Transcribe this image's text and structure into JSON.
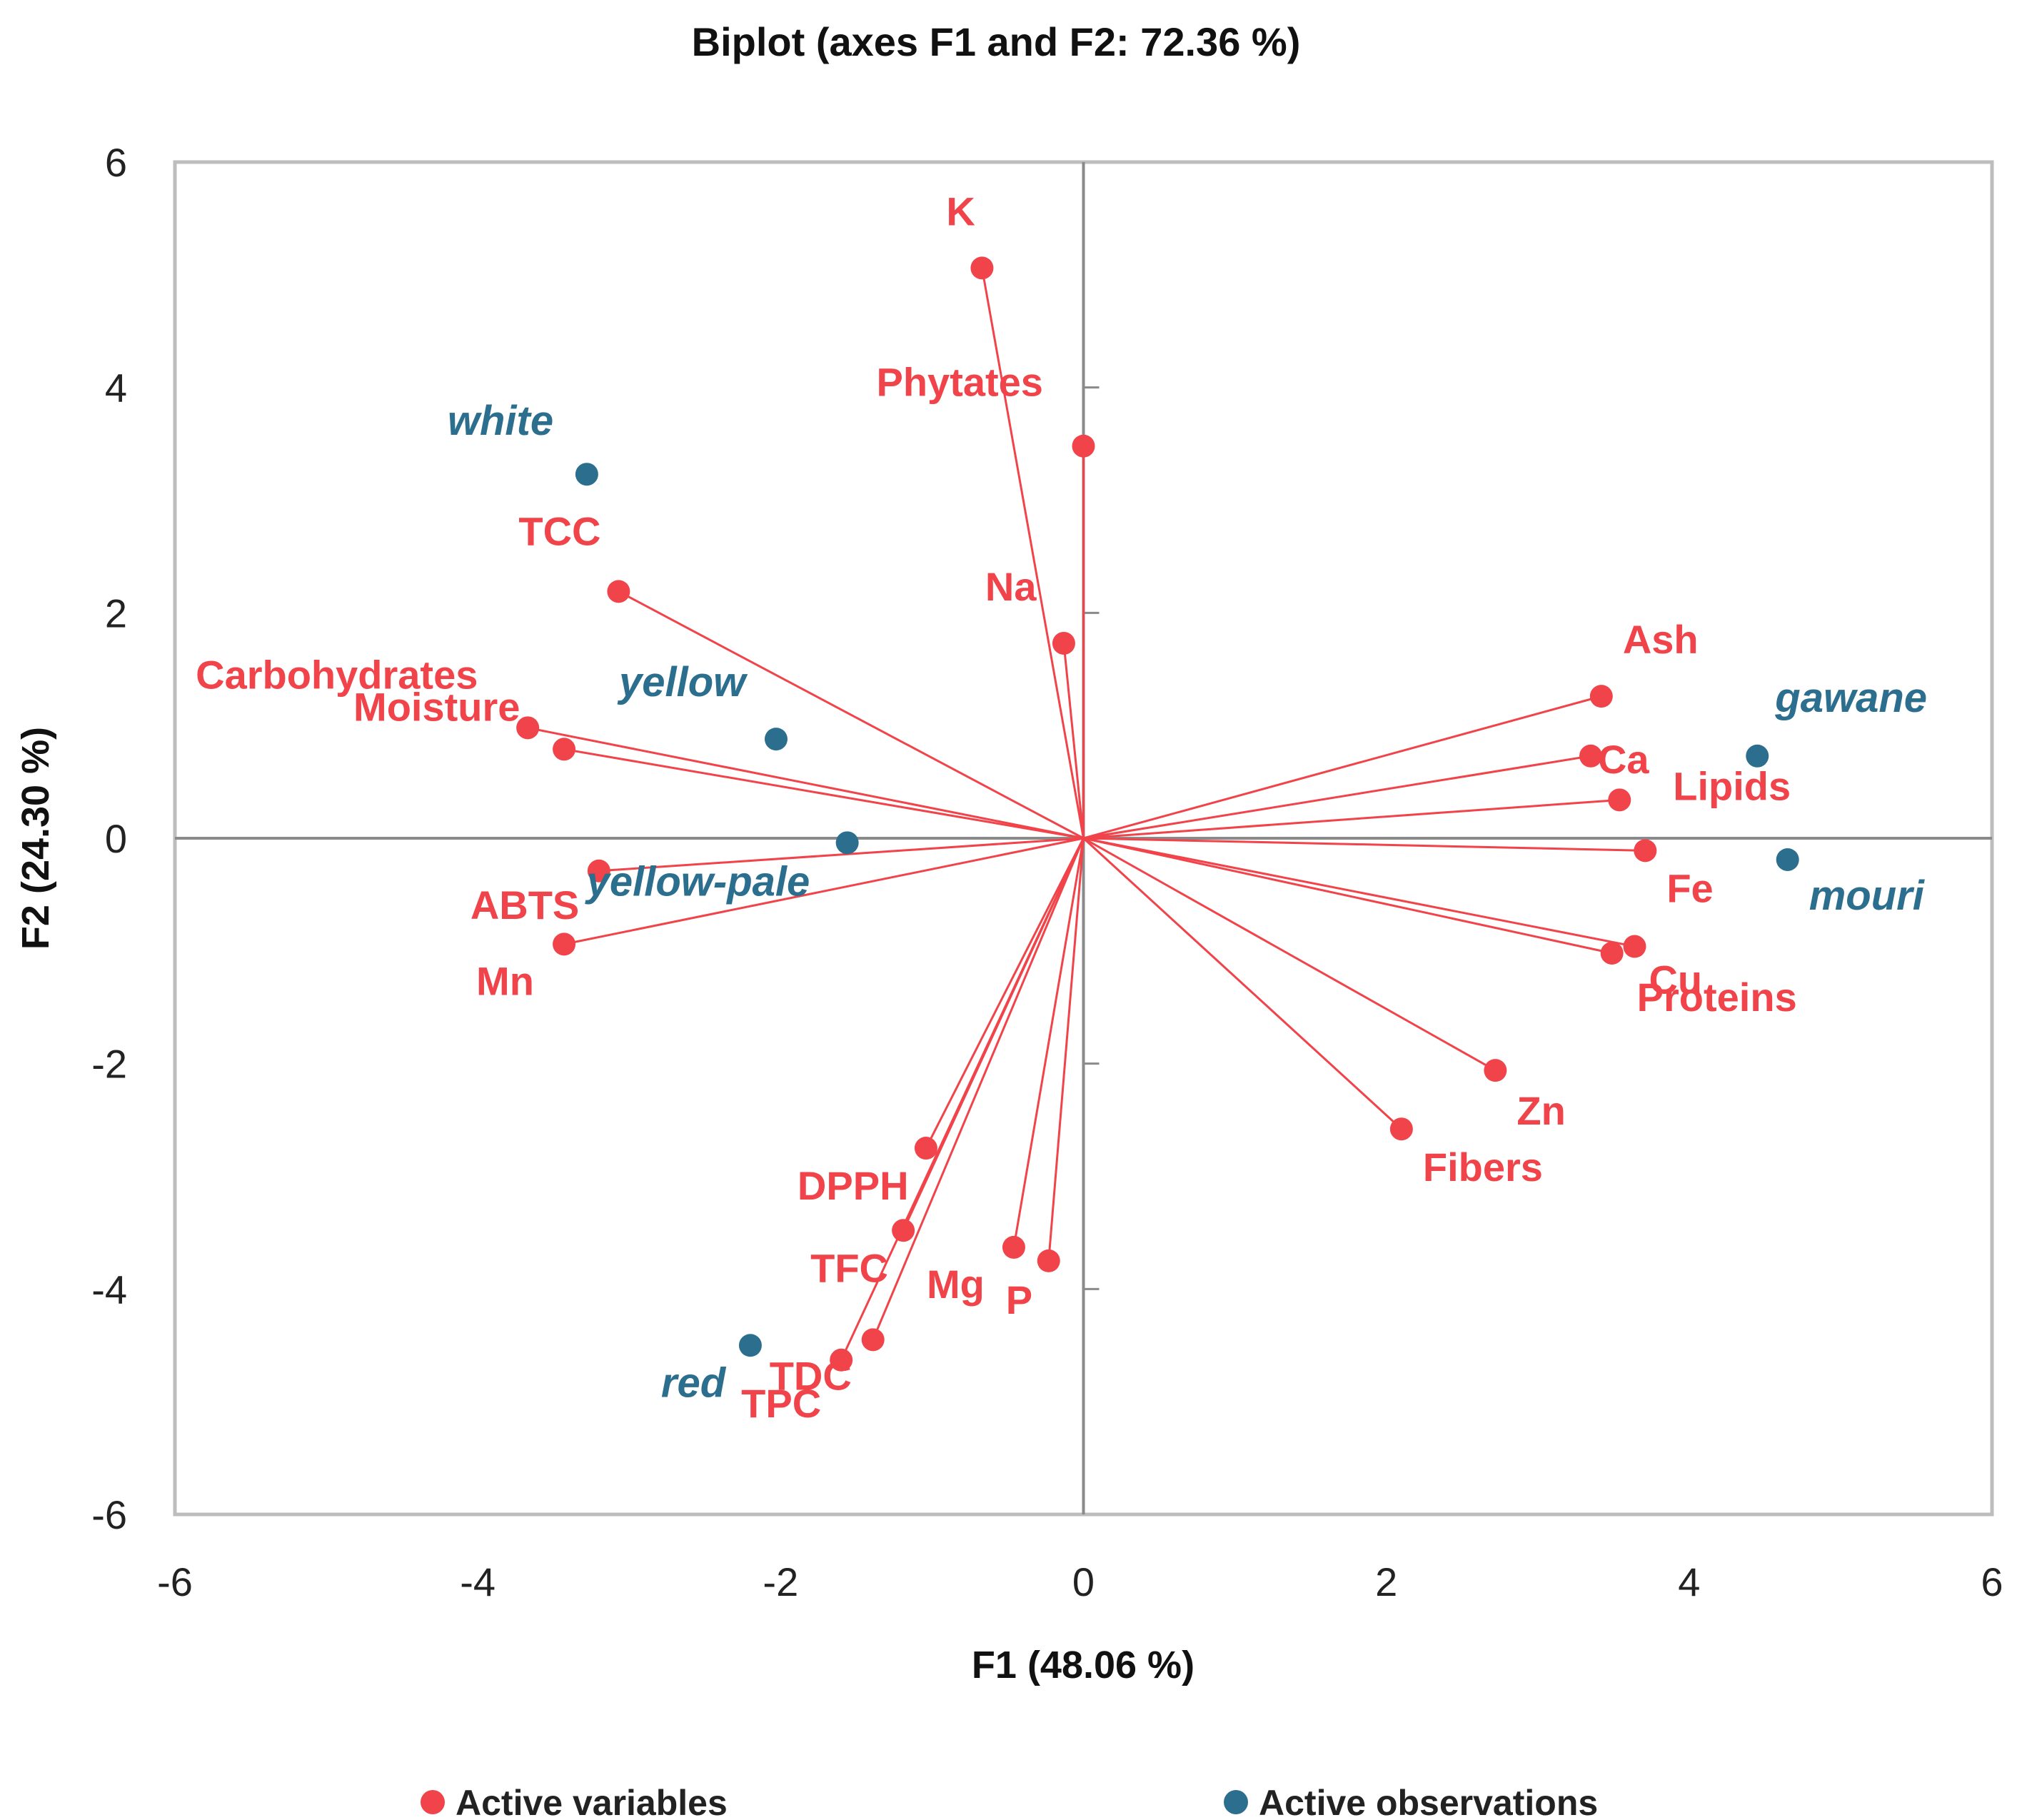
{
  "chart_data": {
    "type": "scatter",
    "title": "Biplot (axes F1 and F2: 72.36 %)",
    "xlabel": "F1 (48.06 %)",
    "ylabel": "F2 (24.30 %)",
    "xlim": [
      -6,
      6
    ],
    "ylim": [
      -6,
      6
    ],
    "x_ticks": [
      -6,
      -4,
      -2,
      0,
      2,
      4,
      6
    ],
    "y_ticks": [
      -6,
      -4,
      -2,
      0,
      2,
      4,
      6
    ],
    "grid": false,
    "legend_position": "bottom",
    "colors": {
      "variables": "#f0434a",
      "observations": "#2c6e8e",
      "frame": "#bdbdbd",
      "axis": "#8a8a8a"
    },
    "series": [
      {
        "name": "Active variables",
        "vectors_from_origin": true,
        "points": [
          {
            "label": "K",
            "x": -0.67,
            "y": 5.06
          },
          {
            "label": "Phytates",
            "x": 0.0,
            "y": 3.48
          },
          {
            "label": "Na",
            "x": -0.13,
            "y": 1.73
          },
          {
            "label": "TCC",
            "x": -3.07,
            "y": 2.19
          },
          {
            "label": "Carbohydrates",
            "x": -3.67,
            "y": 0.98
          },
          {
            "label": "Moisture",
            "x": -3.43,
            "y": 0.79
          },
          {
            "label": "ABTS",
            "x": -3.2,
            "y": -0.29
          },
          {
            "label": "Mn",
            "x": -3.43,
            "y": -0.94
          },
          {
            "label": "Ash",
            "x": 3.42,
            "y": 1.26
          },
          {
            "label": "Ca",
            "x": 3.35,
            "y": 0.73
          },
          {
            "label": "Lipids",
            "x": 3.54,
            "y": 0.34
          },
          {
            "label": "Fe",
            "x": 3.71,
            "y": -0.11
          },
          {
            "label": "Cu",
            "x": 3.64,
            "y": -0.96
          },
          {
            "label": "Proteins",
            "x": 3.49,
            "y": -1.02
          },
          {
            "label": "Zn",
            "x": 2.72,
            "y": -2.06
          },
          {
            "label": "Fibers",
            "x": 2.1,
            "y": -2.58
          },
          {
            "label": "DPPH",
            "x": -1.04,
            "y": -2.75
          },
          {
            "label": "TFC",
            "x": -1.19,
            "y": -3.48
          },
          {
            "label": "Mg",
            "x": -0.46,
            "y": -3.63
          },
          {
            "label": "P",
            "x": -0.23,
            "y": -3.75
          },
          {
            "label": "TDC",
            "x": -1.39,
            "y": -4.45
          },
          {
            "label": "TPC",
            "x": -1.6,
            "y": -4.63
          }
        ]
      },
      {
        "name": "Active observations",
        "points": [
          {
            "label": "white",
            "x": -3.28,
            "y": 3.23
          },
          {
            "label": "yellow",
            "x": -2.03,
            "y": 0.88
          },
          {
            "label": "yellow-pale",
            "x": -1.56,
            "y": -0.04
          },
          {
            "label": "red",
            "x": -2.2,
            "y": -4.5
          },
          {
            "label": "gawane",
            "x": 4.45,
            "y": 0.73
          },
          {
            "label": "mouri",
            "x": 4.65,
            "y": -0.19
          }
        ]
      }
    ]
  }
}
